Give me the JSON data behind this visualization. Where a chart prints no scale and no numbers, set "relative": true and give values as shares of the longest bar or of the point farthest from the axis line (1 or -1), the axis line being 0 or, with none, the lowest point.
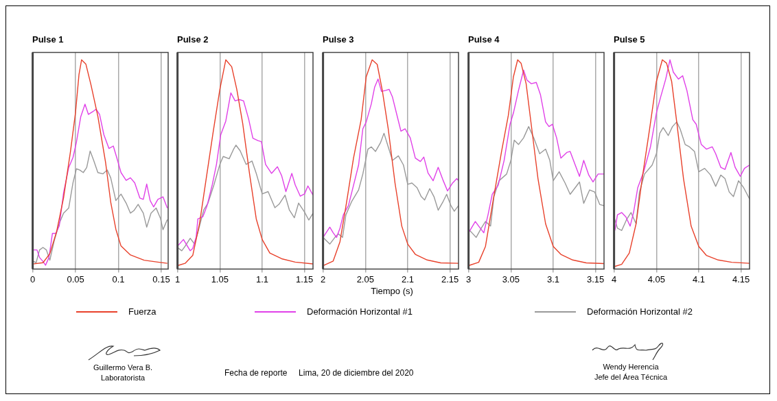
{
  "chart_data": [
    {
      "type": "line",
      "title": "Pulse 1",
      "relative": true,
      "xlim": [
        0,
        0.158
      ],
      "xticks": [
        0,
        0.05,
        0.1,
        0.15
      ],
      "grid": "x",
      "legend": "bottom",
      "marker": "none",
      "line_style": "solid",
      "series": [
        {
          "name": "Fuerza",
          "color": "#e8402a",
          "x": [
            0,
            0.012,
            0.02,
            0.028,
            0.036,
            0.044,
            0.05,
            0.054,
            0.057,
            0.062,
            0.068,
            0.076,
            0.085,
            0.091,
            0.097,
            0.103,
            0.114,
            0.13,
            0.146,
            0.157
          ],
          "values": [
            0.024,
            0.03,
            0.073,
            0.18,
            0.34,
            0.56,
            0.75,
            0.93,
            1.0,
            0.98,
            0.88,
            0.73,
            0.51,
            0.32,
            0.19,
            0.11,
            0.067,
            0.042,
            0.033,
            0.027
          ]
        },
        {
          "name": "Deformación Horizontal #1",
          "color": "#e040e8",
          "x": [
            0.001,
            0.005,
            0.008,
            0.012,
            0.015,
            0.019,
            0.023,
            0.027,
            0.031,
            0.036,
            0.042,
            0.047,
            0.051,
            0.056,
            0.061,
            0.065,
            0.07,
            0.074,
            0.078,
            0.083,
            0.089,
            0.094,
            0.098,
            0.103,
            0.109,
            0.114,
            0.119,
            0.125,
            0.129,
            0.133,
            0.137,
            0.141,
            0.146,
            0.152,
            0.157
          ],
          "values": [
            0.091,
            0.091,
            0.055,
            0.036,
            0.018,
            0.055,
            0.17,
            0.17,
            0.206,
            0.364,
            0.485,
            0.533,
            0.606,
            0.727,
            0.788,
            0.739,
            0.752,
            0.764,
            0.739,
            0.642,
            0.576,
            0.588,
            0.533,
            0.461,
            0.424,
            0.436,
            0.412,
            0.339,
            0.333,
            0.406,
            0.327,
            0.297,
            0.333,
            0.345,
            0.291
          ]
        },
        {
          "name": "Deformación Horizontal #2",
          "color": "#999999",
          "x": [
            0.001,
            0.004,
            0.008,
            0.012,
            0.016,
            0.02,
            0.025,
            0.031,
            0.036,
            0.042,
            0.047,
            0.051,
            0.055,
            0.059,
            0.063,
            0.067,
            0.071,
            0.076,
            0.082,
            0.087,
            0.091,
            0.097,
            0.103,
            0.109,
            0.114,
            0.118,
            0.123,
            0.129,
            0.133,
            0.138,
            0.144,
            0.149,
            0.152,
            0.157
          ],
          "values": [
            0.036,
            0.03,
            0.091,
            0.103,
            0.091,
            0.042,
            0.133,
            0.218,
            0.267,
            0.291,
            0.412,
            0.479,
            0.473,
            0.461,
            0.485,
            0.564,
            0.521,
            0.461,
            0.455,
            0.473,
            0.436,
            0.327,
            0.358,
            0.315,
            0.267,
            0.279,
            0.309,
            0.267,
            0.2,
            0.267,
            0.291,
            0.242,
            0.188,
            0.236
          ]
        }
      ]
    },
    {
      "type": "line",
      "title": "Pulse 2",
      "relative": true,
      "xlim": [
        1,
        1.16
      ],
      "xticks": [
        1,
        1.05,
        1.1,
        1.15
      ],
      "grid": "x",
      "marker": "none",
      "line_style": "solid",
      "series": [
        {
          "color": "#e8402a",
          "x": [
            1.0,
            1.009,
            1.018,
            1.026,
            1.034,
            1.042,
            1.05,
            1.057,
            1.064,
            1.07,
            1.077,
            1.085,
            1.093,
            1.1,
            1.109,
            1.123,
            1.139,
            1.16
          ],
          "values": [
            0.016,
            0.027,
            0.065,
            0.217,
            0.435,
            0.652,
            0.859,
            1.0,
            0.967,
            0.859,
            0.696,
            0.457,
            0.239,
            0.141,
            0.076,
            0.049,
            0.033,
            0.024
          ]
        },
        {
          "color": "#e040e8",
          "x": [
            1.0,
            1.007,
            1.011,
            1.015,
            1.018,
            1.022,
            1.024,
            1.03,
            1.035,
            1.041,
            1.046,
            1.051,
            1.057,
            1.063,
            1.068,
            1.073,
            1.078,
            1.084,
            1.089,
            1.095,
            1.099,
            1.104,
            1.111,
            1.118,
            1.123,
            1.128,
            1.135,
            1.139,
            1.145,
            1.15,
            1.154,
            1.16
          ],
          "values": [
            0.109,
            0.141,
            0.114,
            0.087,
            0.098,
            0.152,
            0.239,
            0.25,
            0.304,
            0.402,
            0.5,
            0.641,
            0.707,
            0.842,
            0.804,
            0.81,
            0.804,
            0.717,
            0.625,
            0.614,
            0.609,
            0.5,
            0.457,
            0.489,
            0.446,
            0.37,
            0.457,
            0.402,
            0.348,
            0.359,
            0.397,
            0.353
          ]
        },
        {
          "color": "#999999",
          "x": [
            1.0,
            1.005,
            1.009,
            1.015,
            1.02,
            1.024,
            1.031,
            1.036,
            1.043,
            1.05,
            1.054,
            1.061,
            1.066,
            1.069,
            1.074,
            1.081,
            1.088,
            1.093,
            1.1,
            1.107,
            1.115,
            1.12,
            1.127,
            1.132,
            1.138,
            1.143,
            1.15,
            1.155,
            1.16
          ],
          "values": [
            0.103,
            0.087,
            0.109,
            0.147,
            0.12,
            0.174,
            0.283,
            0.315,
            0.402,
            0.5,
            0.538,
            0.527,
            0.571,
            0.592,
            0.565,
            0.5,
            0.516,
            0.457,
            0.359,
            0.37,
            0.293,
            0.31,
            0.353,
            0.283,
            0.245,
            0.315,
            0.272,
            0.234,
            0.266
          ]
        }
      ]
    },
    {
      "type": "line",
      "title": "Pulse 3",
      "xlabel": "Tiempo  (s)",
      "relative": true,
      "xlim": [
        2,
        2.16
      ],
      "xticks": [
        2,
        2.05,
        2.1,
        2.15
      ],
      "grid": "x",
      "marker": "none",
      "line_style": "solid",
      "series": [
        {
          "color": "#e8402a",
          "x": [
            2.0,
            2.012,
            2.02,
            2.028,
            2.036,
            2.045,
            2.051,
            2.058,
            2.064,
            2.07,
            2.077,
            2.085,
            2.093,
            2.1,
            2.109,
            2.123,
            2.139,
            2.16
          ],
          "values": [
            0.016,
            0.038,
            0.13,
            0.324,
            0.53,
            0.714,
            0.919,
            1.0,
            0.978,
            0.854,
            0.67,
            0.411,
            0.205,
            0.119,
            0.07,
            0.043,
            0.029,
            0.027
          ]
        },
        {
          "color": "#e040e8",
          "x": [
            2.0,
            2.008,
            2.012,
            2.016,
            2.02,
            2.024,
            2.03,
            2.036,
            2.042,
            2.047,
            2.051,
            2.057,
            2.061,
            2.065,
            2.069,
            2.074,
            2.078,
            2.082,
            2.088,
            2.092,
            2.097,
            2.103,
            2.109,
            2.115,
            2.119,
            2.124,
            2.13,
            2.136,
            2.142,
            2.147,
            2.153,
            2.158,
            2.16
          ],
          "values": [
            0.151,
            0.2,
            0.173,
            0.151,
            0.195,
            0.259,
            0.303,
            0.4,
            0.497,
            0.67,
            0.703,
            0.789,
            0.87,
            0.908,
            0.849,
            0.854,
            0.859,
            0.822,
            0.724,
            0.659,
            0.67,
            0.627,
            0.53,
            0.514,
            0.535,
            0.459,
            0.422,
            0.486,
            0.422,
            0.373,
            0.411,
            0.432,
            0.422
          ]
        },
        {
          "color": "#999999",
          "x": [
            2.0,
            2.004,
            2.008,
            2.014,
            2.018,
            2.023,
            2.027,
            2.034,
            2.042,
            2.047,
            2.053,
            2.057,
            2.062,
            2.068,
            2.072,
            2.077,
            2.082,
            2.089,
            2.095,
            2.1,
            2.105,
            2.111,
            2.116,
            2.12,
            2.126,
            2.131,
            2.136,
            2.142,
            2.146,
            2.151,
            2.155,
            2.16
          ],
          "values": [
            0.151,
            0.135,
            0.119,
            0.151,
            0.168,
            0.151,
            0.259,
            0.324,
            0.378,
            0.454,
            0.573,
            0.584,
            0.562,
            0.605,
            0.649,
            0.584,
            0.519,
            0.541,
            0.497,
            0.405,
            0.411,
            0.389,
            0.346,
            0.33,
            0.384,
            0.346,
            0.281,
            0.324,
            0.357,
            0.303,
            0.276,
            0.303
          ]
        }
      ]
    },
    {
      "type": "line",
      "title": "Pulse 4",
      "relative": true,
      "xlim": [
        3,
        3.16
      ],
      "xticks": [
        3,
        3.05,
        3.1,
        3.15
      ],
      "grid": "x",
      "marker": "none",
      "line_style": "solid",
      "series": [
        {
          "color": "#e8402a",
          "x": [
            3.0,
            3.012,
            3.02,
            3.028,
            3.039,
            3.047,
            3.053,
            3.058,
            3.062,
            3.068,
            3.074,
            3.082,
            3.091,
            3.1,
            3.109,
            3.123,
            3.139,
            3.16
          ],
          "values": [
            0.016,
            0.032,
            0.108,
            0.303,
            0.562,
            0.735,
            0.919,
            1.0,
            0.984,
            0.886,
            0.692,
            0.432,
            0.216,
            0.108,
            0.07,
            0.043,
            0.029,
            0.026
          ]
        },
        {
          "color": "#e040e8",
          "x": [
            3.0,
            3.008,
            3.012,
            3.018,
            3.023,
            3.028,
            3.035,
            3.042,
            3.049,
            3.053,
            3.059,
            3.065,
            3.069,
            3.074,
            3.08,
            3.085,
            3.091,
            3.095,
            3.099,
            3.104,
            3.109,
            3.116,
            3.12,
            3.126,
            3.131,
            3.136,
            3.142,
            3.147,
            3.153,
            3.16
          ],
          "values": [
            0.173,
            0.227,
            0.205,
            0.173,
            0.259,
            0.357,
            0.4,
            0.519,
            0.692,
            0.746,
            0.854,
            0.951,
            0.903,
            0.886,
            0.892,
            0.832,
            0.703,
            0.681,
            0.692,
            0.627,
            0.53,
            0.557,
            0.562,
            0.497,
            0.443,
            0.519,
            0.449,
            0.416,
            0.454,
            0.454
          ]
        },
        {
          "color": "#999999",
          "x": [
            3.0,
            3.004,
            3.009,
            3.015,
            3.02,
            3.026,
            3.03,
            3.036,
            3.045,
            3.05,
            3.054,
            3.059,
            3.065,
            3.071,
            3.077,
            3.084,
            3.091,
            3.096,
            3.1,
            3.107,
            3.114,
            3.12,
            3.126,
            3.131,
            3.136,
            3.143,
            3.149,
            3.155,
            3.16
          ],
          "values": [
            0.189,
            0.173,
            0.151,
            0.195,
            0.227,
            0.205,
            0.346,
            0.422,
            0.454,
            0.519,
            0.616,
            0.595,
            0.627,
            0.681,
            0.627,
            0.551,
            0.573,
            0.519,
            0.422,
            0.465,
            0.411,
            0.357,
            0.389,
            0.416,
            0.314,
            0.378,
            0.368,
            0.308,
            0.303
          ]
        }
      ]
    },
    {
      "type": "line",
      "title": "Pulse 5",
      "relative": true,
      "xlim": [
        4,
        4.16
      ],
      "xticks": [
        4,
        4.05,
        4.1,
        4.15
      ],
      "grid": "x",
      "marker": "none",
      "line_style": "solid",
      "series": [
        {
          "color": "#e8402a",
          "x": [
            4.0,
            4.009,
            4.018,
            4.026,
            4.034,
            4.042,
            4.05,
            4.057,
            4.062,
            4.068,
            4.074,
            4.082,
            4.091,
            4.1,
            4.109,
            4.123,
            4.139,
            4.16
          ],
          "values": [
            0.011,
            0.022,
            0.076,
            0.216,
            0.454,
            0.67,
            0.897,
            1.0,
            0.984,
            0.897,
            0.703,
            0.432,
            0.205,
            0.108,
            0.065,
            0.043,
            0.032,
            0.027
          ]
        },
        {
          "color": "#e040e8",
          "x": [
            4.001,
            4.004,
            4.009,
            4.014,
            4.019,
            4.023,
            4.028,
            4.035,
            4.043,
            4.05,
            4.055,
            4.061,
            4.066,
            4.07,
            4.076,
            4.081,
            4.086,
            4.093,
            4.097,
            4.103,
            4.109,
            4.116,
            4.12,
            4.126,
            4.131,
            4.138,
            4.143,
            4.149,
            4.154,
            4.16
          ],
          "values": [
            0.184,
            0.259,
            0.27,
            0.249,
            0.205,
            0.27,
            0.389,
            0.465,
            0.584,
            0.746,
            0.822,
            0.908,
            1.0,
            0.941,
            0.908,
            0.924,
            0.854,
            0.714,
            0.692,
            0.595,
            0.573,
            0.584,
            0.551,
            0.486,
            0.476,
            0.557,
            0.486,
            0.443,
            0.481,
            0.497
          ]
        },
        {
          "color": "#999999",
          "x": [
            4.0,
            4.004,
            4.009,
            4.015,
            4.02,
            4.026,
            4.03,
            4.036,
            4.045,
            4.05,
            4.054,
            4.058,
            4.064,
            4.069,
            4.074,
            4.078,
            4.084,
            4.089,
            4.095,
            4.1,
            4.107,
            4.114,
            4.12,
            4.126,
            4.131,
            4.136,
            4.141,
            4.147,
            4.153,
            4.16
          ],
          "values": [
            0.249,
            0.195,
            0.184,
            0.238,
            0.27,
            0.216,
            0.368,
            0.454,
            0.497,
            0.551,
            0.649,
            0.676,
            0.638,
            0.681,
            0.703,
            0.67,
            0.595,
            0.584,
            0.562,
            0.465,
            0.481,
            0.449,
            0.395,
            0.449,
            0.432,
            0.368,
            0.346,
            0.422,
            0.389,
            0.335
          ]
        }
      ]
    },
    {
      "type": "other",
      "annotations": [
        "Guillermo Vera B.",
        "Laboratorista",
        "Fecha de reporte     Lima, 20 de diciembre del 2020",
        "Wendy Herencia",
        "Jefe del Área Técnica"
      ]
    }
  ]
}
